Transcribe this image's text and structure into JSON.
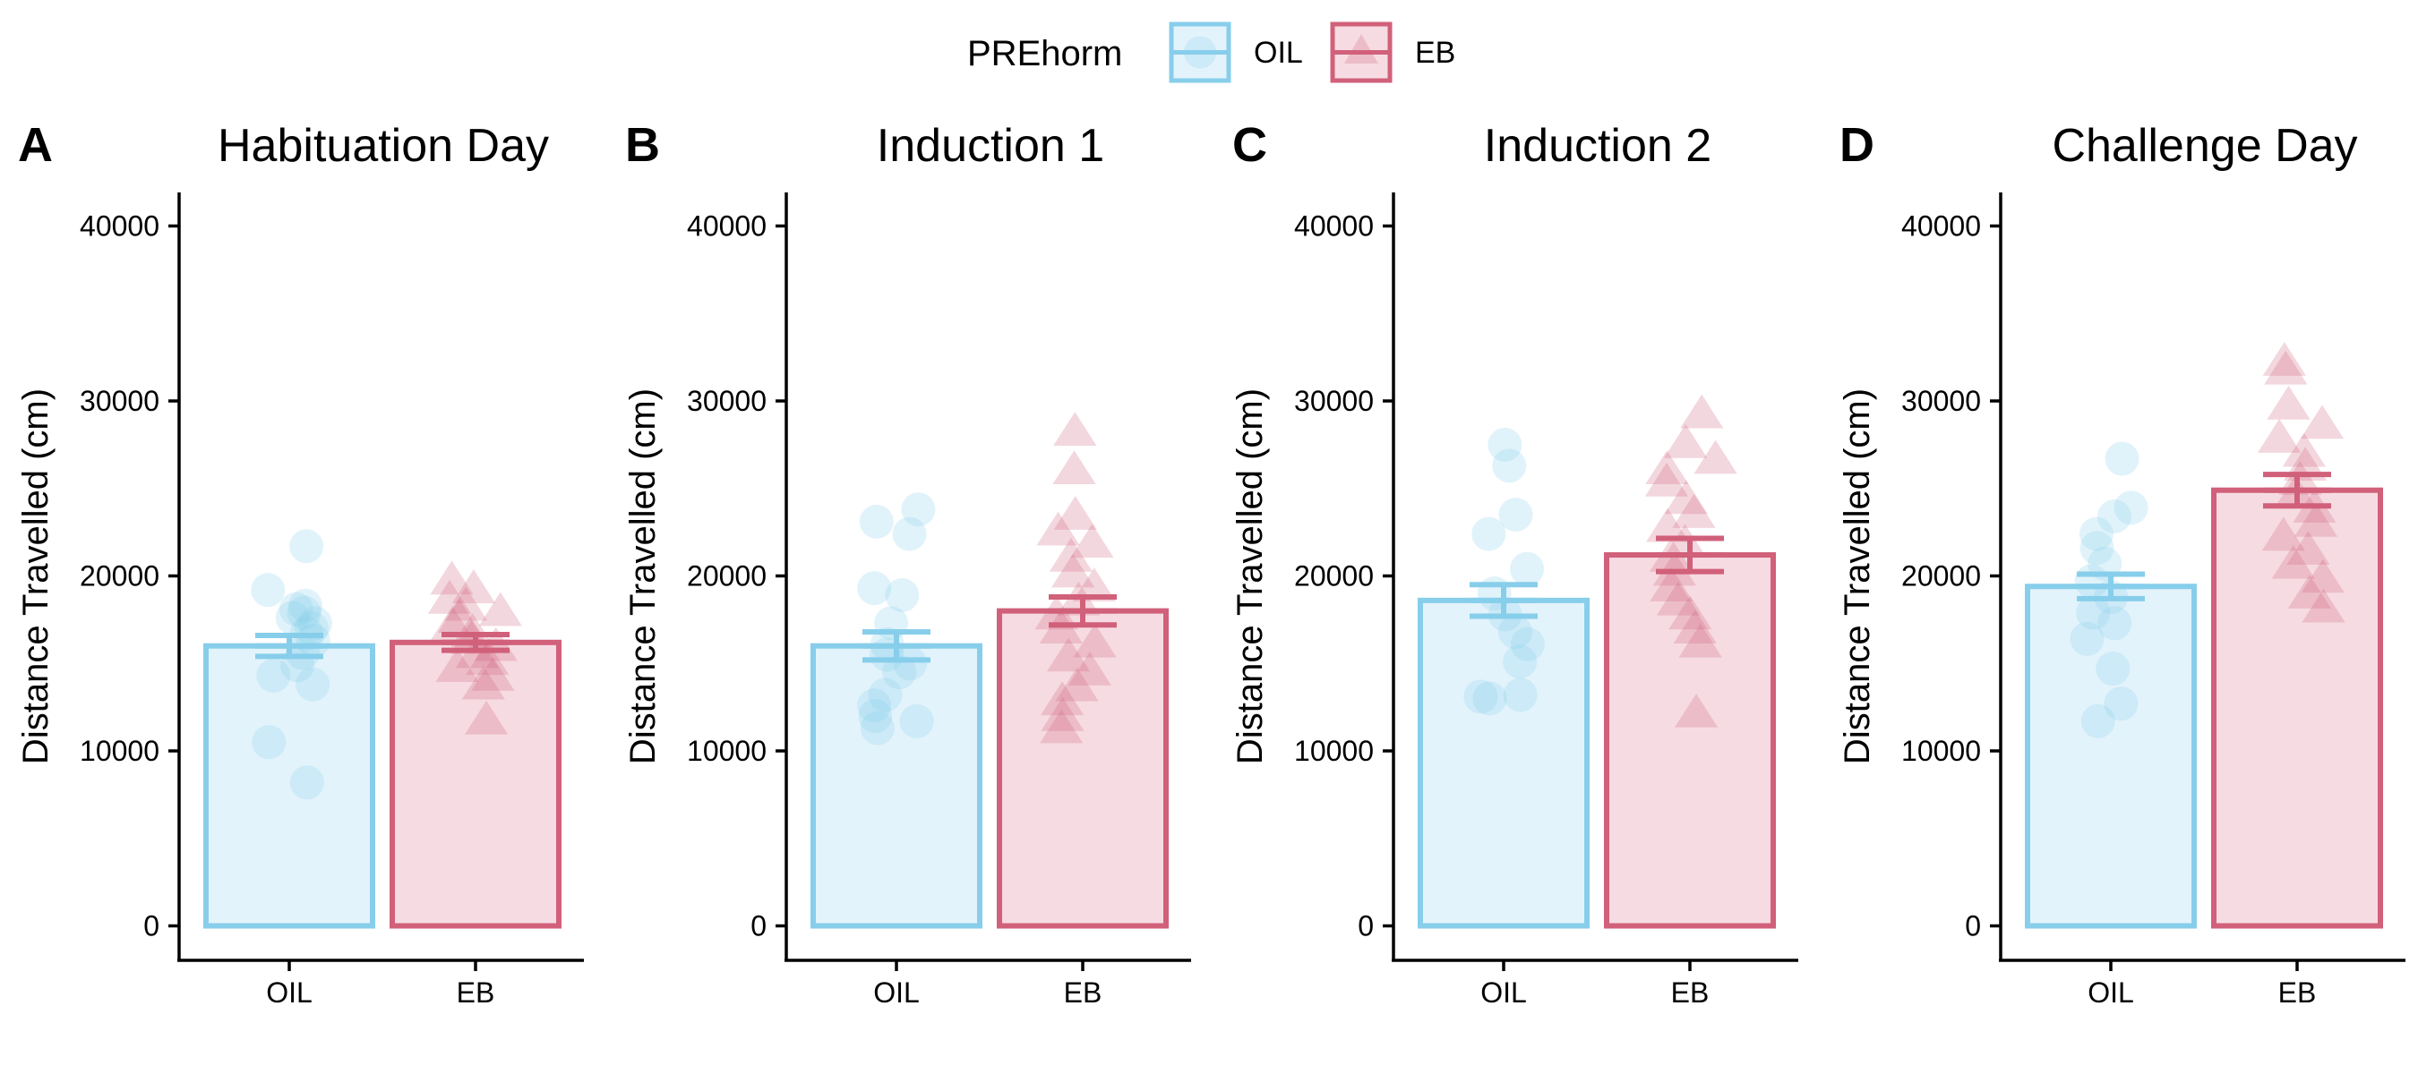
{
  "legend": {
    "title": "PREhorm",
    "items": [
      {
        "label": "OIL",
        "color": "#87CEEB",
        "shape": "circle"
      },
      {
        "label": "EB",
        "color": "#D1607A",
        "shape": "triangle"
      }
    ]
  },
  "chart_data": [
    {
      "type": "bar",
      "panel": "A",
      "title": "Habituation Day",
      "ylabel": "Distance Travelled (cm)",
      "xlabel": "",
      "ylim": [
        0,
        42000
      ],
      "yticks": [
        0,
        10000,
        20000,
        30000,
        40000
      ],
      "categories": [
        "OIL",
        "EB"
      ],
      "values": [
        16000,
        16200
      ],
      "se": [
        600,
        450
      ],
      "points": [
        [
          21700,
          19200,
          18300,
          18100,
          17900,
          17600,
          17300,
          17000,
          16700,
          16300,
          15600,
          14900,
          14300,
          13800,
          10500,
          8200
        ],
        [
          19800,
          19300,
          18700,
          18300,
          18000,
          17600,
          17200,
          16800,
          16400,
          16000,
          15600,
          15200,
          14800,
          14300,
          13800,
          11800
        ]
      ]
    },
    {
      "type": "bar",
      "panel": "B",
      "title": "Induction 1",
      "ylabel": "Distance Travelled (cm)",
      "xlabel": "",
      "ylim": [
        0,
        42000
      ],
      "yticks": [
        0,
        10000,
        20000,
        30000,
        40000
      ],
      "categories": [
        "OIL",
        "EB"
      ],
      "values": [
        16000,
        18000
      ],
      "se": [
        800,
        800
      ],
      "points": [
        [
          23800,
          23100,
          22400,
          19300,
          18900,
          17300,
          16100,
          15500,
          15000,
          14500,
          13200,
          12600,
          12000,
          11700,
          11300
        ],
        [
          28300,
          26100,
          23500,
          22600,
          21900,
          21100,
          20200,
          19400,
          18600,
          17800,
          17000,
          16200,
          15400,
          14600,
          13700,
          12900,
          12000,
          11300
        ]
      ]
    },
    {
      "type": "bar",
      "panel": "C",
      "title": "Induction 2",
      "ylabel": "Distance Travelled (cm)",
      "xlabel": "",
      "ylim": [
        0,
        42000
      ],
      "yticks": [
        0,
        10000,
        20000,
        30000,
        40000
      ],
      "categories": [
        "OIL",
        "EB"
      ],
      "values": [
        18600,
        21200
      ],
      "se": [
        900,
        950
      ],
      "points": [
        [
          27500,
          26300,
          23500,
          22400,
          20400,
          19000,
          17800,
          16800,
          16100,
          15100,
          13200,
          13000,
          13100
        ],
        [
          29300,
          27600,
          26700,
          26100,
          25400,
          24400,
          23600,
          22800,
          21900,
          21100,
          20300,
          19400,
          18600,
          17800,
          17000,
          16200,
          12200
        ]
      ]
    },
    {
      "type": "bar",
      "panel": "D",
      "title": "Challenge Day",
      "ylabel": "Distance Travelled (cm)",
      "xlabel": "",
      "ylim": [
        0,
        42000
      ],
      "yticks": [
        0,
        10000,
        20000,
        30000,
        40000
      ],
      "categories": [
        "OIL",
        "EB"
      ],
      "values": [
        19400,
        24900
      ],
      "se": [
        700,
        900
      ],
      "points": [
        [
          26700,
          23900,
          23400,
          22400,
          21600,
          20700,
          19700,
          18800,
          17900,
          17300,
          16400,
          14700,
          12700,
          11700
        ],
        [
          32300,
          31800,
          29800,
          28700,
          27900,
          27100,
          26300,
          25500,
          24700,
          23900,
          23100,
          22300,
          21500,
          20700,
          19900,
          19000,
          18200
        ]
      ]
    }
  ]
}
